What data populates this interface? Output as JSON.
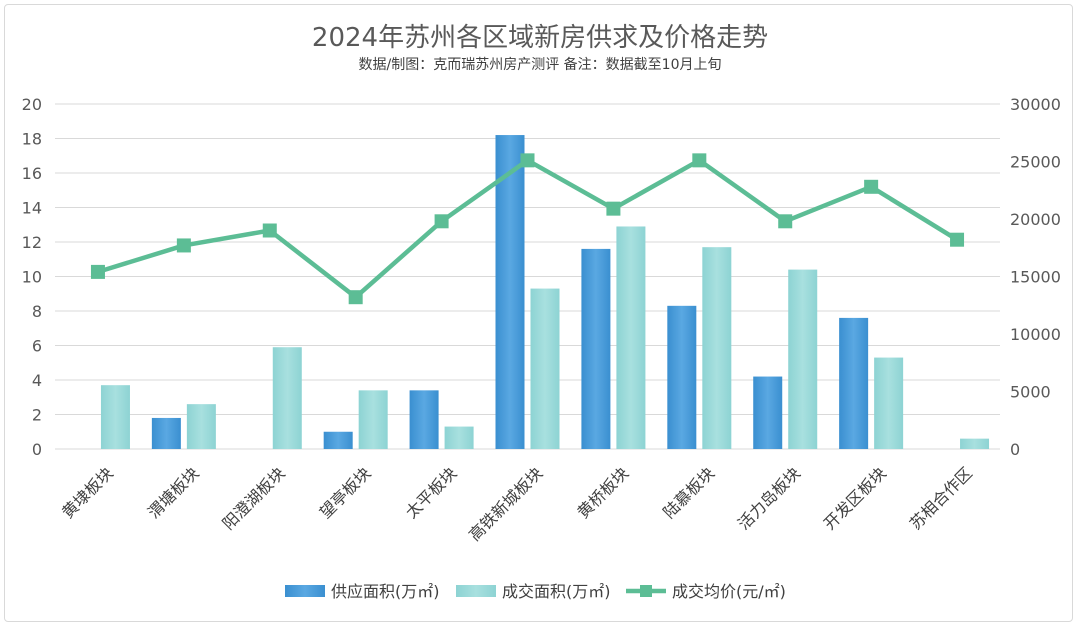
{
  "chart_data": {
    "type": "bar",
    "title": "2024年苏州各区域新房供求及价格走势",
    "subtitle": "数据/制图：克而瑞苏州房产测评 备注：数据截至10月上旬",
    "categories": [
      "黄埭板块",
      "渭塘板块",
      "阳澄湖板块",
      "望亭板块",
      "太平板块",
      "高铁新城板块",
      "黄桥板块",
      "陆慕板块",
      "活力岛板块",
      "开发区板块",
      "苏相合作区"
    ],
    "ylim": [
      0,
      20
    ],
    "y2lim": [
      0,
      30000
    ],
    "y_ticks": [
      "0",
      "2",
      "4",
      "6",
      "8",
      "10",
      "12",
      "14",
      "16",
      "18",
      "20"
    ],
    "y2_ticks": [
      "0",
      "5000",
      "10000",
      "15000",
      "20000",
      "25000",
      "30000"
    ],
    "series": [
      {
        "name": "供应面积(万㎡)",
        "type": "bar",
        "axis": "left",
        "color": "#3a8fd0",
        "values": [
          0,
          1.8,
          0,
          1.0,
          3.4,
          18.2,
          11.6,
          8.3,
          4.2,
          7.6,
          0
        ]
      },
      {
        "name": "成交面积(万㎡)",
        "type": "bar",
        "axis": "left",
        "color": "#8dd3d3",
        "values": [
          3.7,
          2.6,
          5.9,
          3.4,
          1.3,
          9.3,
          12.9,
          11.7,
          10.4,
          5.3,
          0.6
        ]
      },
      {
        "name": "成交均价(元/㎡)",
        "type": "line",
        "axis": "right",
        "color": "#5cbd95",
        "values": [
          15400,
          17700,
          19000,
          13200,
          19800,
          25100,
          20900,
          25100,
          19800,
          22800,
          18200
        ]
      }
    ],
    "grid": true,
    "legend_position": "bottom"
  }
}
